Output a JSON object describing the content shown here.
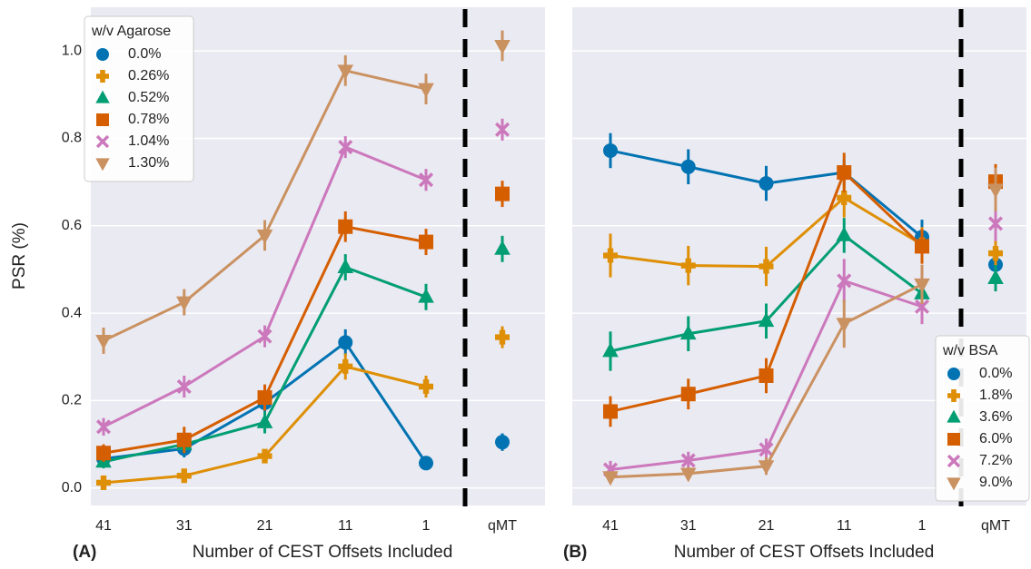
{
  "chart_data": [
    {
      "type": "line",
      "panel_label": "(A)",
      "xlabel": "Number of CEST Offsets Included",
      "ylabel": "PSR (%)",
      "categories": [
        "41",
        "31",
        "21",
        "11",
        "1"
      ],
      "reference_category": "qMT",
      "ylim": [
        -0.04,
        1.1
      ],
      "yticks": [
        {
          "value": 0,
          "label": "0.0"
        },
        {
          "value": 0.2,
          "label": "0.2"
        },
        {
          "value": 0.4,
          "label": "0.4"
        },
        {
          "value": 0.6,
          "label": "0.6"
        },
        {
          "value": 0.8,
          "label": "0.8"
        },
        {
          "value": 1.0,
          "label": "1.0"
        }
      ],
      "grid": true,
      "legend_title": "w/v Agarose",
      "legend_loc": "upper left",
      "series": [
        {
          "name": "0.0%",
          "color": "#0173b2",
          "marker": "circle",
          "values": [
            0.067,
            0.09,
            0.195,
            0.333,
            0.057
          ],
          "errors": [
            0.02,
            0.02,
            0.025,
            0.03,
            0.015
          ],
          "reference_value": 0.105,
          "reference_error": 0.02
        },
        {
          "name": "0.26%",
          "color": "#de8f05",
          "marker": "plus",
          "values": [
            0.012,
            0.028,
            0.073,
            0.278,
            0.232
          ],
          "errors": [
            0.01,
            0.01,
            0.015,
            0.03,
            0.025
          ],
          "reference_value": 0.345,
          "reference_error": 0.025
        },
        {
          "name": "0.52%",
          "color": "#029e73",
          "marker": "triangle-up",
          "values": [
            0.06,
            0.1,
            0.15,
            0.505,
            0.437
          ],
          "errors": [
            0.015,
            0.02,
            0.025,
            0.03,
            0.03
          ],
          "reference_value": 0.547,
          "reference_error": 0.03
        },
        {
          "name": "0.78%",
          "color": "#d55e00",
          "marker": "square",
          "values": [
            0.08,
            0.11,
            0.207,
            0.598,
            0.563
          ],
          "errors": [
            0.02,
            0.03,
            0.03,
            0.035,
            0.03
          ],
          "reference_value": 0.673,
          "reference_error": 0.03
        },
        {
          "name": "1.04%",
          "color": "#cc78bc",
          "marker": "x",
          "values": [
            0.14,
            0.232,
            0.347,
            0.78,
            0.705
          ],
          "errors": [
            0.02,
            0.025,
            0.025,
            0.025,
            0.025
          ],
          "reference_value": 0.82,
          "reference_error": 0.025
        },
        {
          "name": "1.30%",
          "color": "#ca9161",
          "marker": "triangle-down",
          "values": [
            0.337,
            0.425,
            0.578,
            0.955,
            0.913
          ],
          "errors": [
            0.03,
            0.03,
            0.035,
            0.035,
            0.035
          ],
          "reference_value": 1.012,
          "reference_error": 0.035
        }
      ]
    },
    {
      "type": "line",
      "panel_label": "(B)",
      "xlabel": "Number of CEST Offsets Included",
      "categories": [
        "41",
        "31",
        "21",
        "11",
        "1"
      ],
      "reference_category": "qMT",
      "ylim": [
        -0.04,
        1.1
      ],
      "yticks": [
        0,
        0.2,
        0.4,
        0.6,
        0.8,
        1.0
      ],
      "grid": true,
      "legend_title": "w/v BSA",
      "legend_loc": "lower right",
      "series": [
        {
          "name": "0.0%",
          "color": "#0173b2",
          "marker": "circle",
          "values": [
            0.772,
            0.735,
            0.697,
            0.722,
            0.574
          ],
          "errors": [
            0.04,
            0.04,
            0.04,
            0.03,
            0.04
          ],
          "reference_value": 0.511,
          "reference_error": 0.03
        },
        {
          "name": "1.8%",
          "color": "#de8f05",
          "marker": "plus",
          "values": [
            0.532,
            0.509,
            0.507,
            0.664,
            0.557
          ],
          "errors": [
            0.05,
            0.045,
            0.045,
            0.045,
            0.04
          ],
          "reference_value": 0.537,
          "reference_error": 0.03
        },
        {
          "name": "3.6%",
          "color": "#029e73",
          "marker": "triangle-up",
          "values": [
            0.313,
            0.353,
            0.382,
            0.578,
            0.445
          ],
          "errors": [
            0.045,
            0.04,
            0.04,
            0.04,
            0.04
          ],
          "reference_value": 0.48,
          "reference_error": 0.03
        },
        {
          "name": "6.0%",
          "color": "#d55e00",
          "marker": "square",
          "values": [
            0.175,
            0.215,
            0.257,
            0.722,
            0.553
          ],
          "errors": [
            0.035,
            0.035,
            0.04,
            0.045,
            0.04
          ],
          "reference_value": 0.701,
          "reference_error": 0.04
        },
        {
          "name": "7.2%",
          "color": "#cc78bc",
          "marker": "x",
          "values": [
            0.042,
            0.063,
            0.088,
            0.474,
            0.415
          ],
          "errors": [
            0.02,
            0.02,
            0.025,
            0.05,
            0.04
          ],
          "reference_value": 0.605,
          "reference_error": 0.04
        },
        {
          "name": "9.0%",
          "color": "#ca9161",
          "marker": "triangle-down",
          "values": [
            0.025,
            0.033,
            0.05,
            0.376,
            0.466
          ],
          "errors": [
            0.01,
            0.015,
            0.02,
            0.055,
            0.045
          ],
          "reference_value": 0.683,
          "reference_error": 0.05
        }
      ]
    }
  ]
}
